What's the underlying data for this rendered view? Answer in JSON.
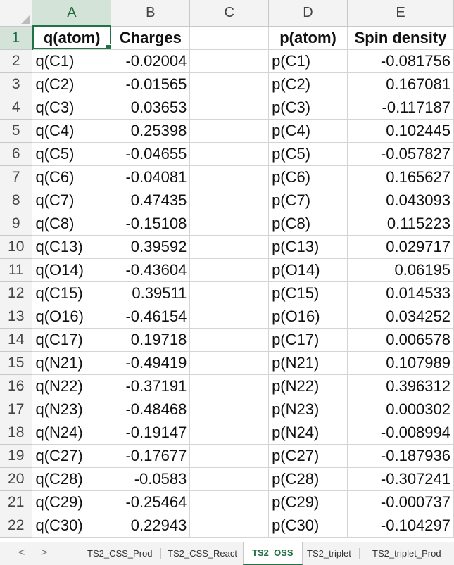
{
  "columns": [
    "A",
    "B",
    "C",
    "D",
    "E"
  ],
  "selected_column": "A",
  "selected_row": "1",
  "header_row": {
    "row_num": "1",
    "a": "q(atom)",
    "b": "Charges",
    "c": "",
    "d": "p(atom)",
    "e": "Spin density"
  },
  "rows": [
    {
      "row_num": "2",
      "a": "q(C1)",
      "b": "-0.02004",
      "c": "",
      "d": "p(C1)",
      "e": "-0.081756"
    },
    {
      "row_num": "3",
      "a": "q(C2)",
      "b": "-0.01565",
      "c": "",
      "d": "p(C2)",
      "e": "0.167081"
    },
    {
      "row_num": "4",
      "a": "q(C3)",
      "b": "0.03653",
      "c": "",
      "d": "p(C3)",
      "e": "-0.117187"
    },
    {
      "row_num": "5",
      "a": "q(C4)",
      "b": "0.25398",
      "c": "",
      "d": "p(C4)",
      "e": "0.102445"
    },
    {
      "row_num": "6",
      "a": "q(C5)",
      "b": "-0.04655",
      "c": "",
      "d": "p(C5)",
      "e": "-0.057827"
    },
    {
      "row_num": "7",
      "a": "q(C6)",
      "b": "-0.04081",
      "c": "",
      "d": "p(C6)",
      "e": "0.165627"
    },
    {
      "row_num": "8",
      "a": "q(C7)",
      "b": "0.47435",
      "c": "",
      "d": "p(C7)",
      "e": "0.043093"
    },
    {
      "row_num": "9",
      "a": "q(C8)",
      "b": "-0.15108",
      "c": "",
      "d": "p(C8)",
      "e": "0.115223"
    },
    {
      "row_num": "10",
      "a": "q(C13)",
      "b": "0.39592",
      "c": "",
      "d": "p(C13)",
      "e": "0.029717"
    },
    {
      "row_num": "11",
      "a": "q(O14)",
      "b": "-0.43604",
      "c": "",
      "d": "p(O14)",
      "e": "0.06195"
    },
    {
      "row_num": "12",
      "a": "q(C15)",
      "b": "0.39511",
      "c": "",
      "d": "p(C15)",
      "e": "0.014533"
    },
    {
      "row_num": "13",
      "a": "q(O16)",
      "b": "-0.46154",
      "c": "",
      "d": "p(O16)",
      "e": "0.034252"
    },
    {
      "row_num": "14",
      "a": "q(C17)",
      "b": "0.19718",
      "c": "",
      "d": "p(C17)",
      "e": "0.006578"
    },
    {
      "row_num": "15",
      "a": "q(N21)",
      "b": "-0.49419",
      "c": "",
      "d": "p(N21)",
      "e": "0.107989"
    },
    {
      "row_num": "16",
      "a": "q(N22)",
      "b": "-0.37191",
      "c": "",
      "d": "p(N22)",
      "e": "0.396312"
    },
    {
      "row_num": "17",
      "a": "q(N23)",
      "b": "-0.48468",
      "c": "",
      "d": "p(N23)",
      "e": "0.000302"
    },
    {
      "row_num": "18",
      "a": "q(N24)",
      "b": "-0.19147",
      "c": "",
      "d": "p(N24)",
      "e": "-0.008994"
    },
    {
      "row_num": "19",
      "a": "q(C27)",
      "b": "-0.17677",
      "c": "",
      "d": "p(C27)",
      "e": "-0.187936"
    },
    {
      "row_num": "20",
      "a": "q(C28)",
      "b": "-0.0583",
      "c": "",
      "d": "p(C28)",
      "e": "-0.307241"
    },
    {
      "row_num": "21",
      "a": "q(C29)",
      "b": "-0.25464",
      "c": "",
      "d": "p(C29)",
      "e": "-0.000737"
    },
    {
      "row_num": "22",
      "a": "q(C30)",
      "b": "0.22943",
      "c": "",
      "d": "p(C30)",
      "e": "-0.104297"
    }
  ],
  "sheet_tabs": [
    {
      "label": "TS2_CSS_Prod",
      "active": false
    },
    {
      "label": "TS2_CSS_React",
      "active": false
    },
    {
      "label": "TS2_OSS",
      "active": true
    },
    {
      "label": "TS2_triplet",
      "active": false
    },
    {
      "label": "TS2_triplet_Prod",
      "active": false
    }
  ],
  "nav": {
    "prev_icon": "chevron-left-icon",
    "next_icon": "chevron-right-icon",
    "prev_glyph": "<",
    "next_glyph": ">"
  },
  "colors": {
    "accent": "#217346",
    "header_bg": "#f3f3f3",
    "gridline": "#d4d4d4"
  }
}
